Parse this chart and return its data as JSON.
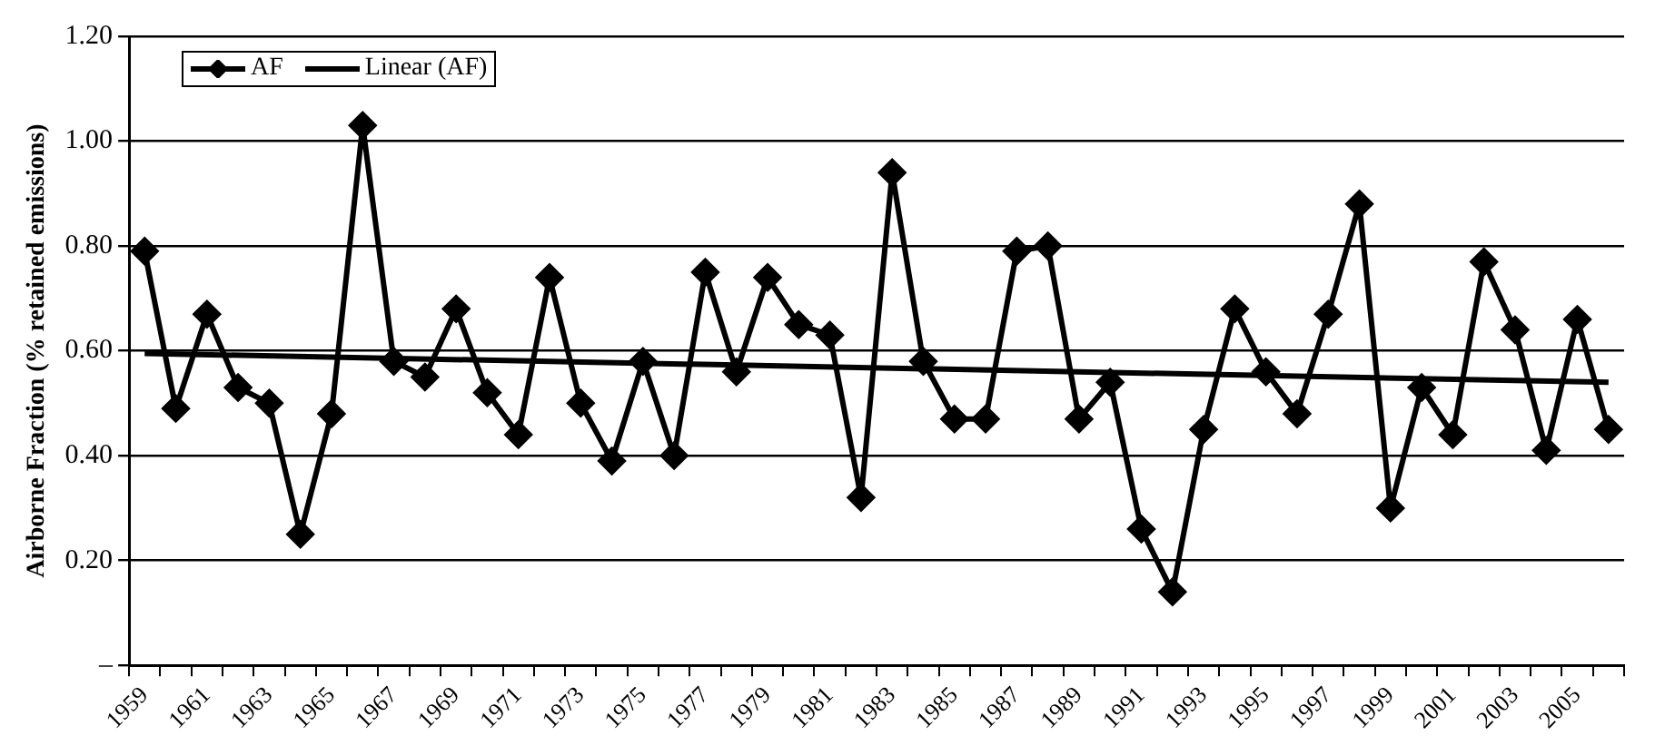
{
  "chart_data": {
    "type": "line",
    "ylabel": "Airborne Fraction (% retained emissions)",
    "categories": [
      "1959",
      null,
      "1961",
      null,
      "1963",
      null,
      "1965",
      null,
      "1967",
      null,
      "1969",
      null,
      "1971",
      null,
      "1973",
      null,
      "1975",
      null,
      "1977",
      null,
      "1979",
      null,
      "1981",
      null,
      "1983",
      null,
      "1985",
      null,
      "1987",
      null,
      "1989",
      null,
      "1991",
      null,
      "1993",
      null,
      "1995",
      null,
      "1997",
      null,
      "1999",
      null,
      "2001",
      null,
      "2003",
      null,
      "2005",
      null
    ],
    "series": [
      {
        "name": "AF",
        "color": "#000000",
        "marker": "diamond",
        "values": [
          0.79,
          0.49,
          0.67,
          0.53,
          0.5,
          0.25,
          0.48,
          1.03,
          0.58,
          0.55,
          0.68,
          0.52,
          0.44,
          0.74,
          0.5,
          0.39,
          0.58,
          0.4,
          0.75,
          0.56,
          0.74,
          0.65,
          0.63,
          0.32,
          0.94,
          0.58,
          0.47,
          0.47,
          0.79,
          0.8,
          0.47,
          0.54,
          0.26,
          0.14,
          0.45,
          0.68,
          0.56,
          0.48,
          0.67,
          0.88,
          0.3,
          0.53,
          0.44,
          0.77,
          0.64,
          0.41,
          0.66,
          0.45
        ]
      },
      {
        "name": "Linear (AF)",
        "color": "#000000",
        "marker": "none",
        "values": [
          0.595,
          null,
          null,
          null,
          null,
          null,
          null,
          null,
          null,
          null,
          null,
          null,
          null,
          null,
          null,
          null,
          null,
          null,
          null,
          null,
          null,
          null,
          null,
          null,
          null,
          null,
          null,
          null,
          null,
          null,
          null,
          null,
          null,
          null,
          null,
          null,
          null,
          null,
          null,
          null,
          null,
          null,
          null,
          null,
          null,
          null,
          null,
          0.54
        ]
      }
    ],
    "ylim": [
      0,
      1.2
    ],
    "yticks": [
      {
        "value": 0,
        "label": "–"
      },
      {
        "value": 0.2,
        "label": "0.20"
      },
      {
        "value": 0.4,
        "label": "0.40"
      },
      {
        "value": 0.6,
        "label": "0.60"
      },
      {
        "value": 0.8,
        "label": "0.80"
      },
      {
        "value": 1.0,
        "label": "1.00"
      },
      {
        "value": 1.2,
        "label": "1.20"
      }
    ],
    "grid": "y",
    "legend": "top left"
  }
}
